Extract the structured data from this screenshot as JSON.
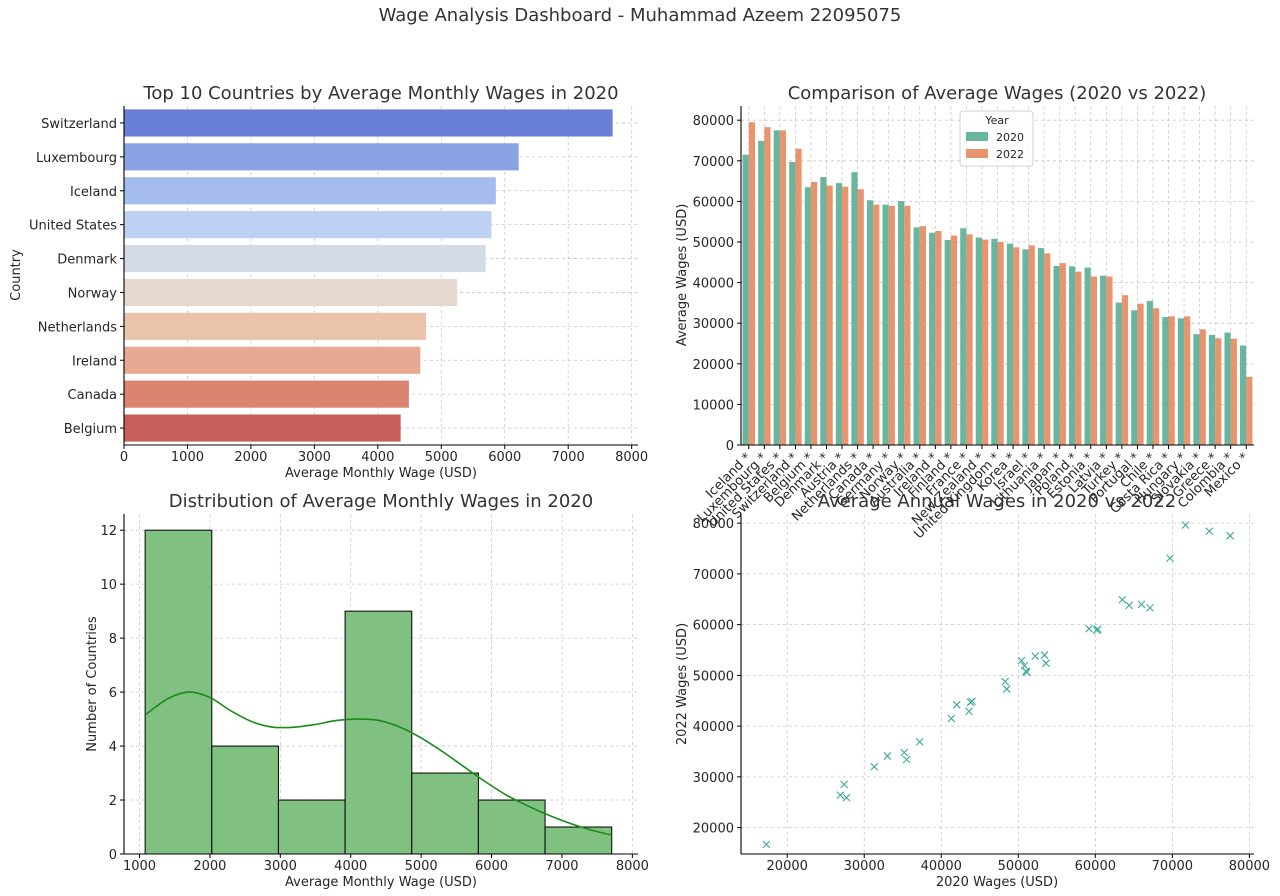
{
  "suptitle": "Wage Analysis Dashboard - Muhammad Azeem 22095075",
  "colors": {
    "bar_palette": [
      "#6a80d8",
      "#8aa1e3",
      "#a5bcee",
      "#bed1f3",
      "#d5dbe6",
      "#e5d8cf",
      "#ecc4ad",
      "#e8a892",
      "#db8570",
      "#c65f59"
    ],
    "series_2020": "#6ab59e",
    "series_2022": "#e8946e",
    "hist_fill": "#80c080",
    "kde_line": "#1a8c1a",
    "scatter_marker": "#3aa89c"
  },
  "chart_data": [
    {
      "id": "top10",
      "type": "bar",
      "orientation": "horizontal",
      "title": "Top 10 Countries by Average Monthly Wages in 2020",
      "xlabel": "Average Monthly Wage (USD)",
      "ylabel": "Country",
      "categories": [
        "Switzerland",
        "Luxembourg",
        "Iceland",
        "United States",
        "Denmark",
        "Norway",
        "Netherlands",
        "Ireland",
        "Canada",
        "Belgium"
      ],
      "values": [
        7700,
        6220,
        5860,
        5790,
        5700,
        5250,
        4760,
        4670,
        4490,
        4360
      ],
      "xlim": [
        0,
        8100
      ],
      "xticks": [
        0,
        1000,
        2000,
        3000,
        4000,
        5000,
        6000,
        7000,
        8000
      ],
      "grid": true
    },
    {
      "id": "comparison",
      "type": "bar",
      "orientation": "vertical",
      "title": "Comparison of Average Wages (2020 vs 2022)",
      "ylabel": "Average Wages (USD)",
      "xlabel": "",
      "legend": {
        "title": "Year",
        "placement": "top-center"
      },
      "categories": [
        "Iceland *",
        "Luxembourg *",
        "United States *",
        "Switzerland *",
        "Belgium *",
        "Denmark *",
        "Austria *",
        "Netherlands *",
        "Canada *",
        "Germany *",
        "Norway *",
        "Australia *",
        "Ireland *",
        "Finland *",
        "France *",
        "New Zealand *",
        "United Kingdom *",
        "Korea *",
        "Israel *",
        "Lithuania *",
        "Japan *",
        "Poland *",
        "Estonia *",
        "Latvia *",
        "Turkey *",
        "Portugal *",
        "Chile *",
        "Costa Rica *",
        "Hungary *",
        "Slovakia *",
        "Greece *",
        "Colombia *",
        "Mexico *"
      ],
      "series": [
        {
          "name": "2020",
          "values": [
            71500,
            74900,
            77500,
            69700,
            63500,
            66000,
            64500,
            67200,
            60300,
            59200,
            60100,
            53600,
            52300,
            50500,
            53400,
            51100,
            50800,
            49600,
            48200,
            48500,
            44100,
            44000,
            43700,
            41700,
            35100,
            33200,
            35500,
            31500,
            31200,
            27300,
            27100,
            27700,
            24500
          ]
        },
        {
          "name": "2022",
          "values": [
            79500,
            78300,
            77500,
            73000,
            64800,
            63900,
            63600,
            63000,
            59200,
            58900,
            58900,
            53900,
            52700,
            51600,
            51900,
            50600,
            50000,
            48700,
            49200,
            47200,
            44800,
            42700,
            41500,
            41500,
            36900,
            34800,
            33700,
            31700,
            31700,
            28500,
            26300,
            26200,
            16800
          ]
        }
      ],
      "ylim": [
        0,
        83500
      ],
      "yticks": [
        0,
        10000,
        20000,
        30000,
        40000,
        50000,
        60000,
        70000,
        80000
      ],
      "grid": true
    },
    {
      "id": "histogram",
      "type": "bar",
      "subtype": "histogram-with-kde",
      "title": "Distribution of Average Monthly Wages in 2020",
      "xlabel": "Average Monthly Wage (USD)",
      "ylabel": "Number of Countries",
      "bin_edges": [
        1080,
        2027,
        2973,
        3920,
        4867,
        5813,
        6760,
        7707
      ],
      "counts": [
        12,
        4,
        2,
        9,
        3,
        2,
        1
      ],
      "kde": {
        "x": [
          1080,
          1400,
          1700,
          2000,
          2300,
          2600,
          2900,
          3200,
          3500,
          3800,
          4100,
          4400,
          4700,
          5000,
          5300,
          5600,
          5900,
          6200,
          6500,
          6800,
          7100,
          7400,
          7707
        ],
        "y": [
          5.15,
          5.75,
          6.0,
          5.8,
          5.3,
          4.9,
          4.7,
          4.7,
          4.8,
          4.95,
          5.0,
          4.95,
          4.7,
          4.3,
          3.8,
          3.25,
          2.7,
          2.2,
          1.8,
          1.45,
          1.15,
          0.9,
          0.7
        ]
      },
      "xlim": [
        780,
        8080
      ],
      "ylim": [
        0,
        12.6
      ],
      "xticks": [
        1000,
        2000,
        3000,
        4000,
        5000,
        6000,
        7000,
        8000
      ],
      "yticks": [
        0,
        2,
        4,
        6,
        8,
        10,
        12
      ],
      "grid": true
    },
    {
      "id": "scatter",
      "type": "scatter",
      "title": "Average Annual Wages in 2020 vs 2022",
      "xlabel": "2020 Wages (USD)",
      "ylabel": "2022 Wages (USD)",
      "marker": "x",
      "points": [
        [
          17300,
          16700
        ],
        [
          26900,
          26400
        ],
        [
          27400,
          28500
        ],
        [
          27700,
          25900
        ],
        [
          31300,
          32000
        ],
        [
          33000,
          34100
        ],
        [
          35200,
          34800
        ],
        [
          35500,
          33400
        ],
        [
          37200,
          36900
        ],
        [
          41300,
          41500
        ],
        [
          42000,
          44200
        ],
        [
          43600,
          42900
        ],
        [
          43800,
          44700
        ],
        [
          44000,
          44900
        ],
        [
          48300,
          48800
        ],
        [
          48500,
          47300
        ],
        [
          50400,
          52900
        ],
        [
          50800,
          51900
        ],
        [
          51000,
          50800
        ],
        [
          51100,
          50600
        ],
        [
          52200,
          53800
        ],
        [
          53400,
          54000
        ],
        [
          53600,
          52400
        ],
        [
          59200,
          59200
        ],
        [
          60200,
          58900
        ],
        [
          60300,
          59100
        ],
        [
          63500,
          64900
        ],
        [
          64400,
          63800
        ],
        [
          66000,
          64000
        ],
        [
          67100,
          63300
        ],
        [
          69700,
          73100
        ],
        [
          71700,
          79600
        ],
        [
          74800,
          78400
        ],
        [
          77500,
          77500
        ]
      ],
      "xlim": [
        14000,
        80600
      ],
      "ylim": [
        14800,
        81800
      ],
      "xticks": [
        20000,
        30000,
        40000,
        50000,
        60000,
        70000,
        80000
      ],
      "yticks": [
        20000,
        30000,
        40000,
        50000,
        60000,
        70000,
        80000
      ],
      "grid": true
    }
  ]
}
